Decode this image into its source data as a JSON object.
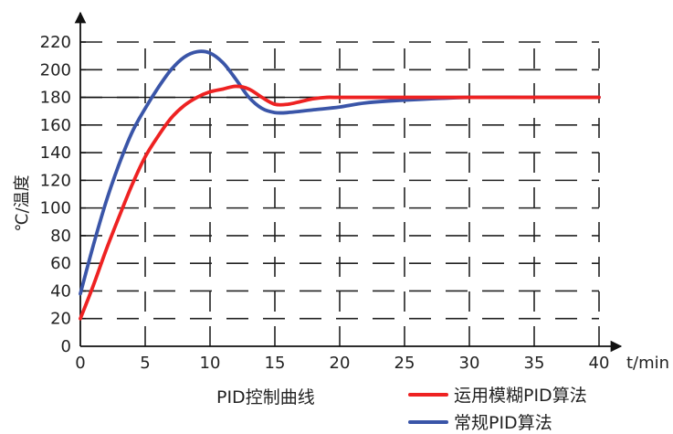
{
  "chart_data": {
    "type": "line",
    "title": "",
    "caption": "PID控制曲线",
    "xlabel": "t/min",
    "ylabel": "℃/温度",
    "xlim": [
      0,
      40
    ],
    "ylim": [
      0,
      220
    ],
    "xticks": [
      0,
      5,
      10,
      15,
      20,
      25,
      30,
      35,
      40
    ],
    "yticks": [
      0,
      20,
      40,
      60,
      80,
      100,
      120,
      140,
      160,
      180,
      200,
      220
    ],
    "reference_line": 180,
    "grid": "dashed",
    "legend_position": "bottom-right",
    "series": [
      {
        "name": "运用模糊PID算法",
        "color": "#ee2222",
        "points": [
          [
            0,
            20
          ],
          [
            1,
            44
          ],
          [
            2,
            70
          ],
          [
            3,
            94
          ],
          [
            4,
            117
          ],
          [
            5,
            137
          ],
          [
            6,
            152
          ],
          [
            7,
            165
          ],
          [
            8,
            174
          ],
          [
            9,
            180
          ],
          [
            10,
            184
          ],
          [
            11,
            186
          ],
          [
            12,
            188
          ],
          [
            13,
            186
          ],
          [
            14,
            180
          ],
          [
            15,
            175
          ],
          [
            16,
            175
          ],
          [
            17,
            177
          ],
          [
            18,
            179
          ],
          [
            19,
            180
          ],
          [
            20,
            180
          ],
          [
            25,
            180
          ],
          [
            30,
            180
          ],
          [
            35,
            180
          ],
          [
            40,
            180
          ]
        ]
      },
      {
        "name": "常规PID算法",
        "color": "#3a55a8",
        "points": [
          [
            0,
            38
          ],
          [
            1,
            73
          ],
          [
            2,
            105
          ],
          [
            3,
            132
          ],
          [
            4,
            155
          ],
          [
            5,
            172
          ],
          [
            6,
            187
          ],
          [
            7,
            200
          ],
          [
            8,
            209
          ],
          [
            9,
            213
          ],
          [
            10,
            212
          ],
          [
            11,
            205
          ],
          [
            12,
            193
          ],
          [
            13,
            180
          ],
          [
            14,
            172
          ],
          [
            15,
            169
          ],
          [
            16,
            169
          ],
          [
            18,
            171
          ],
          [
            20,
            173
          ],
          [
            22,
            176
          ],
          [
            25,
            178
          ],
          [
            30,
            180
          ],
          [
            35,
            180
          ],
          [
            40,
            180
          ]
        ]
      }
    ]
  }
}
